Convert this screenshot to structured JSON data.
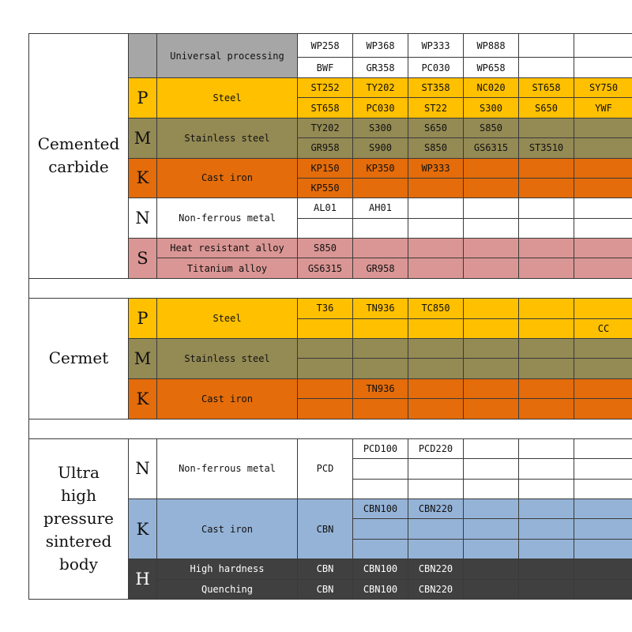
{
  "sections": [
    {
      "title": "Cemented carbide",
      "groups": [
        {
          "label": "Universal processing",
          "color": "#a6a6a6",
          "cell_color": "#ffffff",
          "rows": [
            [
              "WP258",
              "WP368",
              "WP333",
              "WP888",
              null,
              null
            ],
            [
              "BWF",
              "GR358",
              "PC030",
              "WP658",
              null,
              null
            ]
          ]
        },
        {
          "letter": "P",
          "label": "Steel",
          "color": "#ffc000",
          "rows": [
            [
              "ST252",
              "TY202",
              "ST358",
              "NC020",
              "ST658",
              "SY750"
            ],
            [
              "ST658",
              "PC030",
              "ST22",
              "S300",
              "S650",
              "YWF"
            ]
          ]
        },
        {
          "letter": "M",
          "label": "Stainless steel",
          "color": "#948a54",
          "rows": [
            [
              "TY202",
              "S300",
              "S650",
              "S850",
              null,
              null
            ],
            [
              "GR958",
              "S900",
              "S850",
              "GS6315",
              "ST3510",
              null
            ]
          ]
        },
        {
          "letter": "K",
          "label": "Cast iron",
          "color": "#e46c0a",
          "rows": [
            [
              "KP150",
              "KP350",
              "WP333",
              null,
              null,
              null
            ],
            [
              "KP550",
              null,
              null,
              null,
              null,
              null
            ]
          ]
        },
        {
          "letter": "N",
          "label": "Non-ferrous metal",
          "color": "#ffffff",
          "rows": [
            [
              "AL01",
              "AH01",
              null,
              null,
              null,
              null
            ],
            [
              null,
              null,
              null,
              null,
              null,
              null
            ]
          ]
        },
        {
          "letter": "S",
          "sublabels": [
            "Heat resistant alloy",
            "Titanium alloy"
          ],
          "color": "#da9694",
          "rows": [
            [
              "S850",
              null,
              null,
              null,
              null,
              null
            ],
            [
              "GS6315",
              "GR958",
              null,
              null,
              null,
              null
            ]
          ]
        }
      ]
    },
    {
      "title": "Cermet",
      "groups": [
        {
          "letter": "P",
          "label": "Steel",
          "color": "#ffc000",
          "rows": [
            [
              "T36",
              "TN936",
              "TC850",
              null,
              null,
              null
            ],
            [
              null,
              null,
              null,
              null,
              null,
              "CC"
            ]
          ]
        },
        {
          "letter": "M",
          "label": "Stainless steel",
          "color": "#948a54",
          "rows": [
            [
              null,
              null,
              null,
              null,
              null,
              null
            ],
            [
              null,
              null,
              null,
              null,
              null,
              null
            ]
          ]
        },
        {
          "letter": "K",
          "label": "Cast iron",
          "color": "#e46c0a",
          "rows": [
            [
              null,
              "TN936",
              null,
              null,
              null,
              null
            ],
            [
              null,
              null,
              null,
              null,
              null,
              null
            ]
          ]
        }
      ]
    },
    {
      "title": "Ultra high pressure sintered body",
      "groups": [
        {
          "letter": "N",
          "label": "Non-ferrous metal",
          "grade": "PCD",
          "color": "#ffffff",
          "rows": [
            [
              "PCD100",
              "PCD220",
              null,
              null,
              null
            ],
            [
              null,
              null,
              null,
              null,
              null
            ],
            [
              null,
              null,
              null,
              null,
              null
            ]
          ]
        },
        {
          "letter": "K",
          "label": "Cast iron",
          "grade": "CBN",
          "color": "#95b3d7",
          "rows": [
            [
              "CBN100",
              "CBN220",
              null,
              null,
              null
            ],
            [
              null,
              null,
              null,
              null,
              null
            ],
            [
              null,
              null,
              null,
              null,
              null
            ]
          ]
        },
        {
          "letter": "H",
          "sublabels": [
            "High hardness",
            "Quenching"
          ],
          "color": "#404040",
          "rows": [
            [
              "CBN",
              "CBN100",
              "CBN220",
              null,
              null,
              null
            ],
            [
              "CBN",
              "CBN100",
              "CBN220",
              null,
              null,
              null
            ]
          ]
        }
      ]
    }
  ]
}
